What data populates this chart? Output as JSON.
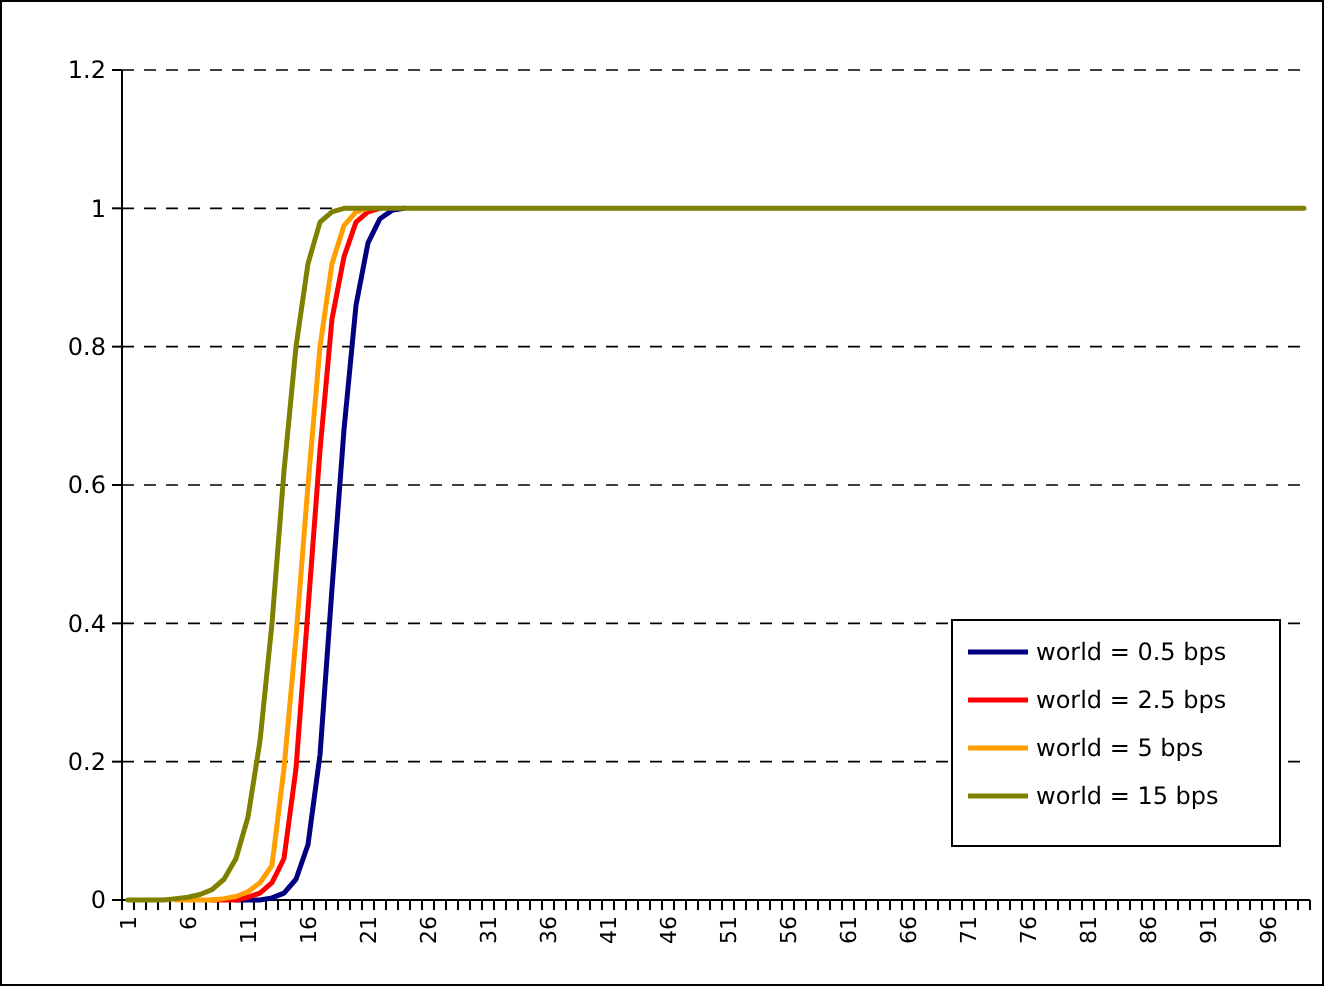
{
  "chart_data": {
    "type": "line",
    "categories": [
      "1",
      null,
      null,
      null,
      null,
      "6",
      null,
      null,
      null,
      null,
      "11",
      null,
      null,
      null,
      null,
      "16",
      null,
      null,
      null,
      null,
      "21",
      null,
      null,
      null,
      null,
      "26",
      null,
      null,
      null,
      null,
      "31",
      null,
      null,
      null,
      null,
      "36",
      null,
      null,
      null,
      null,
      "41",
      null,
      null,
      null,
      null,
      "46",
      null,
      null,
      null,
      null,
      "51",
      null,
      null,
      null,
      null,
      "56",
      null,
      null,
      null,
      null,
      "61",
      null,
      null,
      null,
      null,
      "66",
      null,
      null,
      null,
      null,
      "71",
      null,
      null,
      null,
      null,
      "76",
      null,
      null,
      null,
      null,
      "81",
      null,
      null,
      null,
      null,
      "86",
      null,
      null,
      null,
      null,
      "91",
      null,
      null,
      null,
      null,
      "96",
      null,
      null,
      null
    ],
    "ylim": [
      0,
      1.2
    ],
    "yticks": [
      0,
      0.2,
      0.4,
      0.6,
      0.8,
      1,
      1.2
    ],
    "grid": "y",
    "legend": "bottom right",
    "marker": "none",
    "line_style": "solid",
    "series": [
      {
        "name": "world = 0.5 bps",
        "color": "#000080",
        "values": [
          null,
          null,
          null,
          null,
          null,
          null,
          null,
          null,
          null,
          0,
          0,
          0,
          0.003,
          0.01,
          0.03,
          0.08,
          0.21,
          0.45,
          0.68,
          0.86,
          0.95,
          0.985,
          0.997,
          1,
          null,
          null,
          null,
          null,
          null,
          null,
          null,
          null,
          null,
          null,
          null,
          null,
          null,
          null,
          null,
          null,
          null,
          null,
          null,
          null,
          null,
          null,
          null,
          null,
          null,
          null,
          null,
          null,
          null,
          null,
          null,
          null,
          null,
          null,
          null,
          null,
          null,
          null,
          null,
          null,
          null,
          null,
          null,
          null,
          null,
          null,
          null,
          null,
          null,
          null,
          null,
          null,
          null,
          null,
          null,
          null,
          null,
          null,
          null,
          null,
          null,
          null,
          null,
          null,
          null,
          null,
          null,
          null,
          null,
          null,
          null,
          null,
          null,
          null,
          null
        ]
      },
      {
        "name": "world = 2.5 bps",
        "color": "#ff0000",
        "values": [
          null,
          null,
          null,
          null,
          null,
          null,
          null,
          0,
          0,
          0,
          0.004,
          0.01,
          0.025,
          0.06,
          0.19,
          0.42,
          0.65,
          0.84,
          0.93,
          0.98,
          0.995,
          1,
          null,
          null,
          null,
          null,
          null,
          null,
          null,
          null,
          null,
          null,
          null,
          null,
          null,
          null,
          null,
          null,
          null,
          null,
          null,
          null,
          null,
          null,
          null,
          null,
          null,
          null,
          null,
          null,
          null,
          null,
          null,
          null,
          null,
          null,
          null,
          null,
          null,
          null,
          null,
          null,
          null,
          null,
          null,
          null,
          null,
          null,
          null,
          null,
          null,
          null,
          null,
          null,
          null,
          null,
          null,
          null,
          null,
          null,
          null,
          null,
          null,
          null,
          null,
          null,
          null,
          null,
          null,
          null,
          null,
          null,
          null,
          null,
          null,
          null,
          null,
          null,
          null
        ]
      },
      {
        "name": "world = 5 bps",
        "color": "#ffa000",
        "values": [
          null,
          null,
          null,
          null,
          0,
          0,
          0,
          0,
          0.002,
          0.005,
          0.012,
          0.025,
          0.05,
          0.19,
          0.38,
          0.6,
          0.8,
          0.92,
          0.975,
          0.995,
          1,
          null,
          null,
          null,
          null,
          null,
          null,
          null,
          null,
          null,
          null,
          null,
          null,
          null,
          null,
          null,
          null,
          null,
          null,
          null,
          null,
          null,
          null,
          null,
          null,
          null,
          null,
          null,
          null,
          null,
          null,
          null,
          null,
          null,
          null,
          null,
          null,
          null,
          null,
          null,
          null,
          null,
          null,
          null,
          null,
          null,
          null,
          null,
          null,
          null,
          null,
          null,
          null,
          null,
          null,
          null,
          null,
          null,
          null,
          null,
          null,
          null,
          null,
          null,
          null,
          null,
          null,
          null,
          null,
          null,
          null,
          null,
          null,
          null,
          null,
          null,
          null,
          null,
          null
        ]
      },
      {
        "name": "world = 15 bps",
        "color": "#808000",
        "values": [
          0,
          0,
          0,
          0,
          0.002,
          0.004,
          0.008,
          0.015,
          0.03,
          0.06,
          0.12,
          0.23,
          0.4,
          0.62,
          0.8,
          0.92,
          0.98,
          0.995,
          1,
          1,
          1,
          1,
          1,
          1,
          1,
          1,
          1,
          1,
          1,
          1,
          1,
          1,
          1,
          1,
          1,
          1,
          1,
          1,
          1,
          1,
          1,
          1,
          1,
          1,
          1,
          1,
          1,
          1,
          1,
          1,
          1,
          1,
          1,
          1,
          1,
          1,
          1,
          1,
          1,
          1,
          1,
          1,
          1,
          1,
          1,
          1,
          1,
          1,
          1,
          1,
          1,
          1,
          1,
          1,
          1,
          1,
          1,
          1,
          1,
          1,
          1,
          1,
          1,
          1,
          1,
          1,
          1,
          1,
          1,
          1,
          1,
          1,
          1,
          1,
          1,
          1,
          1,
          1,
          1
        ]
      }
    ]
  }
}
